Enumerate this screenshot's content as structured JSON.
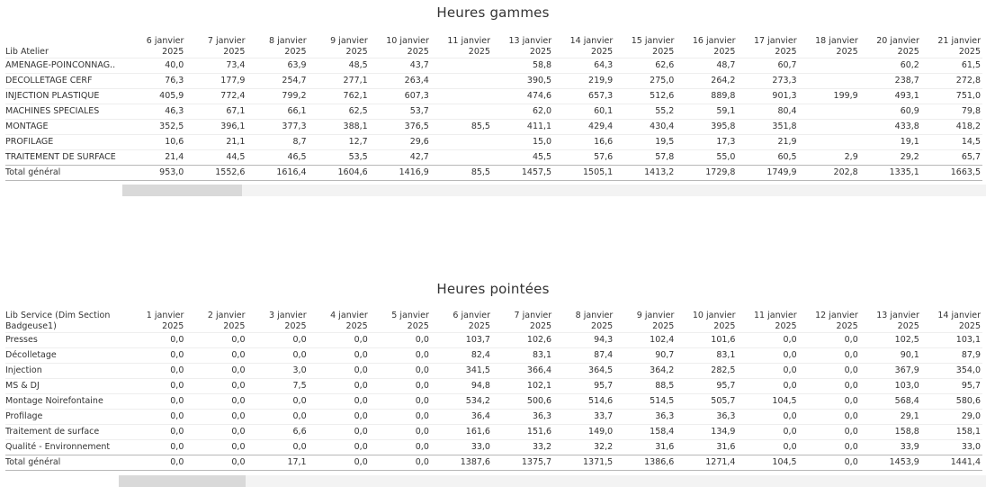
{
  "gammes": {
    "title": "Heures gammes",
    "row_header": "Lib Atelier",
    "columns": [
      [
        "6 janvier",
        "2025"
      ],
      [
        "7 janvier",
        "2025"
      ],
      [
        "8 janvier",
        "2025"
      ],
      [
        "9 janvier",
        "2025"
      ],
      [
        "10 janvier",
        "2025"
      ],
      [
        "11 janvier",
        "2025"
      ],
      [
        "13 janvier",
        "2025"
      ],
      [
        "14 janvier",
        "2025"
      ],
      [
        "15 janvier",
        "2025"
      ],
      [
        "16 janvier",
        "2025"
      ],
      [
        "17 janvier",
        "2025"
      ],
      [
        "18 janvier",
        "2025"
      ],
      [
        "20 janvier",
        "2025"
      ],
      [
        "21 janvier",
        "2025"
      ]
    ],
    "rows": [
      {
        "label": "AMENAGE-POINCONNAG..",
        "values": [
          "40,0",
          "73,4",
          "63,9",
          "48,5",
          "43,7",
          "",
          "58,8",
          "64,3",
          "62,6",
          "48,7",
          "60,7",
          "",
          "60,2",
          "61,5"
        ]
      },
      {
        "label": "DECOLLETAGE CERF",
        "values": [
          "76,3",
          "177,9",
          "254,7",
          "277,1",
          "263,4",
          "",
          "390,5",
          "219,9",
          "275,0",
          "264,2",
          "273,3",
          "",
          "238,7",
          "272,8"
        ]
      },
      {
        "label": "INJECTION PLASTIQUE",
        "values": [
          "405,9",
          "772,4",
          "799,2",
          "762,1",
          "607,3",
          "",
          "474,6",
          "657,3",
          "512,6",
          "889,8",
          "901,3",
          "199,9",
          "493,1",
          "751,0"
        ]
      },
      {
        "label": "MACHINES SPECIALES",
        "values": [
          "46,3",
          "67,1",
          "66,1",
          "62,5",
          "53,7",
          "",
          "62,0",
          "60,1",
          "55,2",
          "59,1",
          "80,4",
          "",
          "60,9",
          "79,8"
        ]
      },
      {
        "label": "MONTAGE",
        "values": [
          "352,5",
          "396,1",
          "377,3",
          "388,1",
          "376,5",
          "85,5",
          "411,1",
          "429,4",
          "430,4",
          "395,8",
          "351,8",
          "",
          "433,8",
          "418,2"
        ]
      },
      {
        "label": "PROFILAGE",
        "values": [
          "10,6",
          "21,1",
          "8,7",
          "12,7",
          "29,6",
          "",
          "15,0",
          "16,6",
          "19,5",
          "17,3",
          "21,9",
          "",
          "19,1",
          "14,5"
        ]
      },
      {
        "label": "TRAITEMENT DE SURFACE",
        "values": [
          "21,4",
          "44,5",
          "46,5",
          "53,5",
          "42,7",
          "",
          "45,5",
          "57,6",
          "57,8",
          "55,0",
          "60,5",
          "2,9",
          "29,2",
          "65,7"
        ]
      }
    ],
    "total": {
      "label": "Total général",
      "values": [
        "953,0",
        "1552,6",
        "1616,4",
        "1604,6",
        "1416,9",
        "85,5",
        "1457,5",
        "1505,1",
        "1413,2",
        "1729,8",
        "1749,9",
        "202,8",
        "1335,1",
        "1663,5"
      ]
    }
  },
  "pointees": {
    "title": "Heures pointées",
    "row_header_1": "Lib Service (Dim Section",
    "row_header_2": "Badgeuse1)",
    "columns": [
      [
        "1 janvier",
        "2025"
      ],
      [
        "2 janvier",
        "2025"
      ],
      [
        "3 janvier",
        "2025"
      ],
      [
        "4 janvier",
        "2025"
      ],
      [
        "5 janvier",
        "2025"
      ],
      [
        "6 janvier",
        "2025"
      ],
      [
        "7 janvier",
        "2025"
      ],
      [
        "8 janvier",
        "2025"
      ],
      [
        "9 janvier",
        "2025"
      ],
      [
        "10 janvier",
        "2025"
      ],
      [
        "11 janvier",
        "2025"
      ],
      [
        "12 janvier",
        "2025"
      ],
      [
        "13 janvier",
        "2025"
      ],
      [
        "14 janvier",
        "2025"
      ]
    ],
    "rows": [
      {
        "label": "Presses",
        "values": [
          "0,0",
          "0,0",
          "0,0",
          "0,0",
          "0,0",
          "103,7",
          "102,6",
          "94,3",
          "102,4",
          "101,6",
          "0,0",
          "0,0",
          "102,5",
          "103,1"
        ]
      },
      {
        "label": "Décolletage",
        "values": [
          "0,0",
          "0,0",
          "0,0",
          "0,0",
          "0,0",
          "82,4",
          "83,1",
          "87,4",
          "90,7",
          "83,1",
          "0,0",
          "0,0",
          "90,1",
          "87,9"
        ]
      },
      {
        "label": "Injection",
        "values": [
          "0,0",
          "0,0",
          "3,0",
          "0,0",
          "0,0",
          "341,5",
          "366,4",
          "364,5",
          "364,2",
          "282,5",
          "0,0",
          "0,0",
          "367,9",
          "354,0"
        ]
      },
      {
        "label": "MS & DJ",
        "values": [
          "0,0",
          "0,0",
          "7,5",
          "0,0",
          "0,0",
          "94,8",
          "102,1",
          "95,7",
          "88,5",
          "95,7",
          "0,0",
          "0,0",
          "103,0",
          "95,7"
        ]
      },
      {
        "label": "Montage Noirefontaine",
        "values": [
          "0,0",
          "0,0",
          "0,0",
          "0,0",
          "0,0",
          "534,2",
          "500,6",
          "514,6",
          "514,5",
          "505,7",
          "104,5",
          "0,0",
          "568,4",
          "580,6"
        ]
      },
      {
        "label": "Profilage",
        "values": [
          "0,0",
          "0,0",
          "0,0",
          "0,0",
          "0,0",
          "36,4",
          "36,3",
          "33,7",
          "36,3",
          "36,3",
          "0,0",
          "0,0",
          "29,1",
          "29,0"
        ]
      },
      {
        "label": "Traitement de surface",
        "values": [
          "0,0",
          "0,0",
          "6,6",
          "0,0",
          "0,0",
          "161,6",
          "151,6",
          "149,0",
          "158,4",
          "134,9",
          "0,0",
          "0,0",
          "158,8",
          "158,1"
        ]
      },
      {
        "label": "Qualité - Environnement",
        "values": [
          "0,0",
          "0,0",
          "0,0",
          "0,0",
          "0,0",
          "33,0",
          "33,2",
          "32,2",
          "31,6",
          "31,6",
          "0,0",
          "0,0",
          "33,9",
          "33,0"
        ]
      }
    ],
    "total": {
      "label": "Total général",
      "values": [
        "0,0",
        "0,0",
        "17,1",
        "0,0",
        "0,0",
        "1387,6",
        "1375,7",
        "1371,5",
        "1386,6",
        "1271,4",
        "104,5",
        "0,0",
        "1453,9",
        "1441,4"
      ]
    }
  }
}
